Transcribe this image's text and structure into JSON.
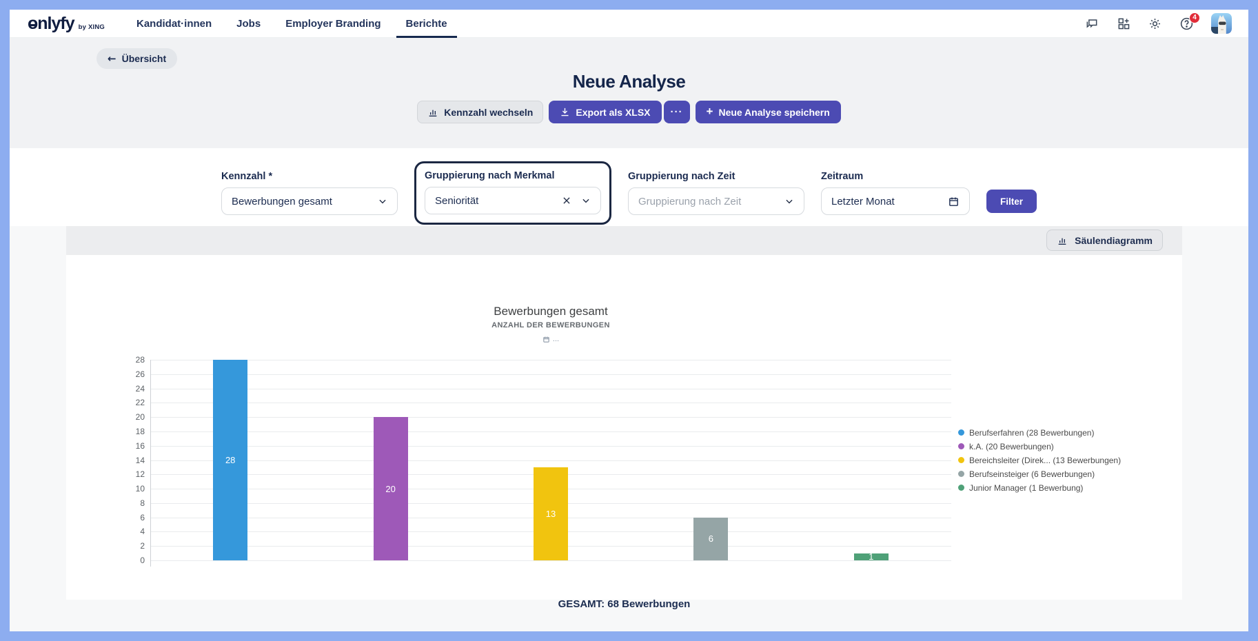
{
  "colors": {
    "primary": "#4c4bb3",
    "badge": "#e12d39",
    "frame": "#8dadf0"
  },
  "nav": {
    "logo_o": "o",
    "logo_rest": "nlyfy",
    "logo_byline": "by XING",
    "items": [
      {
        "label": "Kandidat·innen",
        "active": false
      },
      {
        "label": "Jobs",
        "active": false
      },
      {
        "label": "Employer Branding",
        "active": false
      },
      {
        "label": "Berichte",
        "active": true
      }
    ],
    "badge_count": "4"
  },
  "header": {
    "back_label": "Übersicht",
    "title": "Neue Analyse",
    "switch_metric_label": "Kennzahl wechseln",
    "export_label": "Export als XLSX",
    "more_label": "···",
    "save_label": "Neue Analyse speichern"
  },
  "filters": {
    "kennzahl": {
      "label": "Kennzahl *",
      "value": "Bewerbungen gesamt"
    },
    "merkmal": {
      "label": "Gruppierung nach Merkmal",
      "value": "Seniorität"
    },
    "zeit": {
      "label": "Gruppierung nach Zeit",
      "placeholder": "Gruppierung nach Zeit"
    },
    "zeitraum": {
      "label": "Zeitraum",
      "value": "Letzter Monat"
    },
    "filter_button_label": "Filter"
  },
  "chart": {
    "toolbar_button_label": "Säulendiagramm",
    "annotation": "..."
  },
  "chart_data": {
    "type": "bar",
    "title": "Bewerbungen gesamt",
    "subtitle": "ANZAHL DER BEWERBUNGEN",
    "categories": [
      "Berufserfahren",
      "k.A.",
      "Bereichsleiter (Direk...",
      "Berufseinsteiger",
      "Junior Manager"
    ],
    "values": [
      28,
      20,
      13,
      6,
      1
    ],
    "colors": [
      "#3598db",
      "#9e59b8",
      "#f1c40f",
      "#95a5a6",
      "#4fa178"
    ],
    "legend": [
      "Berufserfahren (28 Bewerbungen)",
      "k.A. (20 Bewerbungen)",
      "Bereichsleiter (Direk... (13 Bewerbungen)",
      "Berufseinsteiger (6 Bewerbungen)",
      "Junior Manager (1 Bewerbung)"
    ],
    "ylim": [
      0,
      28
    ],
    "ytick_step": 2,
    "grid": true,
    "legend_position": "right",
    "total": 68,
    "total_label": "GESAMT: 68 Bewerbungen"
  }
}
